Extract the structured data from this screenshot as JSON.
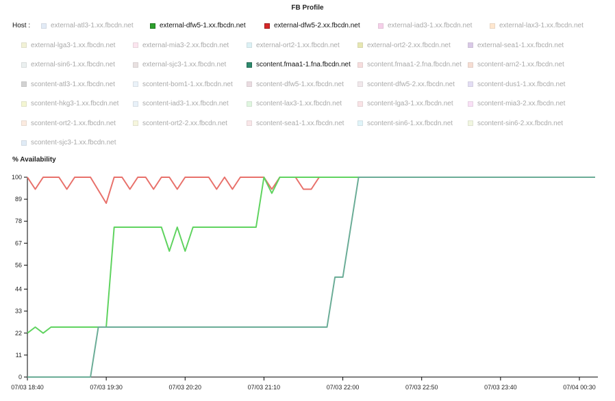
{
  "title": "FB Profile",
  "host_label": "Host :",
  "legend": [
    {
      "label": "external-atl3-1.xx.fbcdn.net",
      "color": "#aec7e8",
      "on": false
    },
    {
      "label": "external-dfw5-1.xx.fbcdn.net",
      "color": "#2ca02c",
      "on": true
    },
    {
      "label": "external-dfw5-2.xx.fbcdn.net",
      "color": "#d62728",
      "on": true
    },
    {
      "label": "external-iad3-1.xx.fbcdn.net",
      "color": "#e377c2",
      "on": false
    },
    {
      "label": "external-lax3-1.xx.fbcdn.net",
      "color": "#ffbb78",
      "on": false
    },
    {
      "label": "external-lga3-1.xx.fbcdn.net",
      "color": "#dbdb8d",
      "on": false
    },
    {
      "label": "external-mia3-2.xx.fbcdn.net",
      "color": "#f7b6d2",
      "on": false
    },
    {
      "label": "external-ort2-1.xx.fbcdn.net",
      "color": "#9edae5",
      "on": false
    },
    {
      "label": "external-ort2-2.xx.fbcdn.net",
      "color": "#bcbd22",
      "on": false
    },
    {
      "label": "external-sea1-1.xx.fbcdn.net",
      "color": "#9467bd",
      "on": false
    },
    {
      "label": "external-sin6-1.xx.fbcdn.net",
      "color": "#c7d6d6",
      "on": false
    },
    {
      "label": "external-sjc3-1.xx.fbcdn.net",
      "color": "#c0a8a8",
      "on": false
    },
    {
      "label": "scontent.fmaa1-1.fna.fbcdn.net",
      "color": "#2e8b6e",
      "on": true
    },
    {
      "label": "scontent.fmaa1-2.fna.fbcdn.net",
      "color": "#e8a0a0",
      "on": false
    },
    {
      "label": "scontent-arn2-1.xx.fbcdn.net",
      "color": "#e8a080",
      "on": false
    },
    {
      "label": "scontent-atl3-1.xx.fbcdn.net",
      "color": "#7f7f7f",
      "on": false
    },
    {
      "label": "scontent-bom1-1.xx.fbcdn.net",
      "color": "#c6dbef",
      "on": false
    },
    {
      "label": "scontent-dfw5-1.xx.fbcdn.net",
      "color": "#c49cab",
      "on": false
    },
    {
      "label": "scontent-dfw5-2.xx.fbcdn.net",
      "color": "#d8c0c8",
      "on": false
    },
    {
      "label": "scontent-dus1-1.xx.fbcdn.net",
      "color": "#b0a0e0",
      "on": false
    },
    {
      "label": "scontent-hkg3-1.xx.fbcdn.net",
      "color": "#e0e880",
      "on": false
    },
    {
      "label": "scontent-iad3-1.xx.fbcdn.net",
      "color": "#c0d8f0",
      "on": false
    },
    {
      "label": "scontent-lax3-1.xx.fbcdn.net",
      "color": "#a8e8a8",
      "on": false
    },
    {
      "label": "scontent-lga3-1.xx.fbcdn.net",
      "color": "#f0b0b8",
      "on": false
    },
    {
      "label": "scontent-mia3-2.xx.fbcdn.net",
      "color": "#f0a8e8",
      "on": false
    },
    {
      "label": "scontent-ort2-1.xx.fbcdn.net",
      "color": "#f8c8a8",
      "on": false
    },
    {
      "label": "scontent-ort2-2.xx.fbcdn.net",
      "color": "#e8e8a0",
      "on": false
    },
    {
      "label": "scontent-sea1-1.xx.fbcdn.net",
      "color": "#f0b8c0",
      "on": false
    },
    {
      "label": "scontent-sin6-1.xx.fbcdn.net",
      "color": "#a8e0f0",
      "on": false
    },
    {
      "label": "scontent-sin6-2.xx.fbcdn.net",
      "color": "#d8e8a8",
      "on": false
    },
    {
      "label": "scontent-sjc3-1.xx.fbcdn.net",
      "color": "#a8c8e8",
      "on": false
    }
  ],
  "chart_data": {
    "type": "line",
    "title": "FB Profile",
    "ylabel": "% Availability",
    "xlabel": "",
    "x_unit": "time",
    "x_ticks": [
      "07/03 18:40",
      "07/03 19:30",
      "07/03 20:20",
      "07/03 21:10",
      "07/03 22:00",
      "07/03 22:50",
      "07/03 23:40",
      "07/04 00:30"
    ],
    "y_ticks": [
      0,
      11,
      22,
      33,
      44,
      56,
      67,
      78,
      89,
      100
    ],
    "ylim": [
      0,
      100
    ],
    "xlim": [
      "07/03 18:40",
      "07/04 00:40"
    ],
    "grid": false,
    "legend_position": "top",
    "series": [
      {
        "name": "external-dfw5-2.xx.fbcdn.net",
        "color": "#e8706a",
        "points": [
          [
            "07/03 18:40",
            100
          ],
          [
            "07/03 18:45",
            94
          ],
          [
            "07/03 18:50",
            100
          ],
          [
            "07/03 19:00",
            100
          ],
          [
            "07/03 19:05",
            94
          ],
          [
            "07/03 19:10",
            100
          ],
          [
            "07/03 19:20",
            100
          ],
          [
            "07/03 19:30",
            87
          ],
          [
            "07/03 19:35",
            100
          ],
          [
            "07/03 19:40",
            100
          ],
          [
            "07/03 19:45",
            94
          ],
          [
            "07/03 19:50",
            100
          ],
          [
            "07/03 19:55",
            100
          ],
          [
            "07/03 20:00",
            94
          ],
          [
            "07/03 20:05",
            100
          ],
          [
            "07/03 20:10",
            100
          ],
          [
            "07/03 20:15",
            94
          ],
          [
            "07/03 20:20",
            100
          ],
          [
            "07/03 20:35",
            100
          ],
          [
            "07/03 20:40",
            94
          ],
          [
            "07/03 20:45",
            100
          ],
          [
            "07/03 20:50",
            94
          ],
          [
            "07/03 20:55",
            100
          ],
          [
            "07/03 21:10",
            100
          ],
          [
            "07/03 21:15",
            94
          ],
          [
            "07/03 21:20",
            100
          ],
          [
            "07/03 21:30",
            100
          ],
          [
            "07/03 21:35",
            94
          ],
          [
            "07/03 21:40",
            94
          ],
          [
            "07/03 21:45",
            100
          ],
          [
            "07/04 00:40",
            100
          ]
        ]
      },
      {
        "name": "external-dfw5-1.xx.fbcdn.net",
        "color": "#5fd35f",
        "points": [
          [
            "07/03 18:40",
            22
          ],
          [
            "07/03 18:45",
            25
          ],
          [
            "07/03 18:50",
            22
          ],
          [
            "07/03 18:55",
            25
          ],
          [
            "07/03 19:30",
            25
          ],
          [
            "07/03 19:35",
            75
          ],
          [
            "07/03 20:05",
            75
          ],
          [
            "07/03 20:10",
            63
          ],
          [
            "07/03 20:15",
            75
          ],
          [
            "07/03 20:20",
            63
          ],
          [
            "07/03 20:25",
            75
          ],
          [
            "07/03 21:05",
            75
          ],
          [
            "07/03 21:10",
            100
          ],
          [
            "07/03 21:15",
            92
          ],
          [
            "07/03 21:20",
            100
          ],
          [
            "07/04 00:40",
            100
          ]
        ]
      },
      {
        "name": "scontent.fmaa1-1.fna.fbcdn.net",
        "color": "#6aac96",
        "points": [
          [
            "07/03 18:40",
            0
          ],
          [
            "07/03 19:20",
            0
          ],
          [
            "07/03 19:25",
            25
          ],
          [
            "07/03 21:50",
            25
          ],
          [
            "07/03 21:55",
            50
          ],
          [
            "07/03 22:00",
            50
          ],
          [
            "07/03 22:05",
            75
          ],
          [
            "07/03 22:10",
            100
          ],
          [
            "07/04 00:40",
            100
          ]
        ]
      }
    ]
  }
}
